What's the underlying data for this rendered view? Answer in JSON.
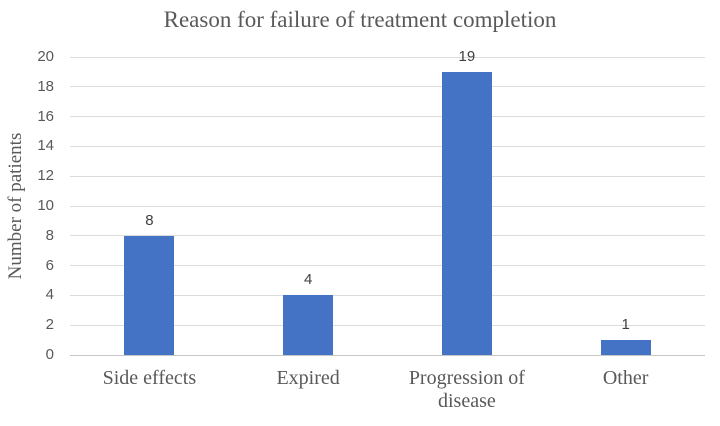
{
  "chart_data": {
    "type": "bar",
    "title": "Reason for failure of treatment completion",
    "categories": [
      "Side effects",
      "Expired",
      "Progression of disease",
      "Other"
    ],
    "values": [
      8,
      4,
      19,
      1
    ],
    "data_labels": [
      "8",
      "4",
      "19",
      "1"
    ],
    "xlabel": "",
    "ylabel": "Number of patients",
    "ylim": [
      0,
      20
    ],
    "yticks": [
      0,
      2,
      4,
      6,
      8,
      10,
      12,
      14,
      16,
      18,
      20
    ],
    "grid": true,
    "legend": false,
    "colors": {
      "bar": "#4472c4",
      "gridline": "#dcdcdc",
      "axis_line": "#c6c6c6",
      "title_text": "#595959",
      "tick_text": "#595959",
      "category_text": "#595959",
      "data_label_text": "#3f3f3f",
      "background": "#ffffff"
    }
  }
}
